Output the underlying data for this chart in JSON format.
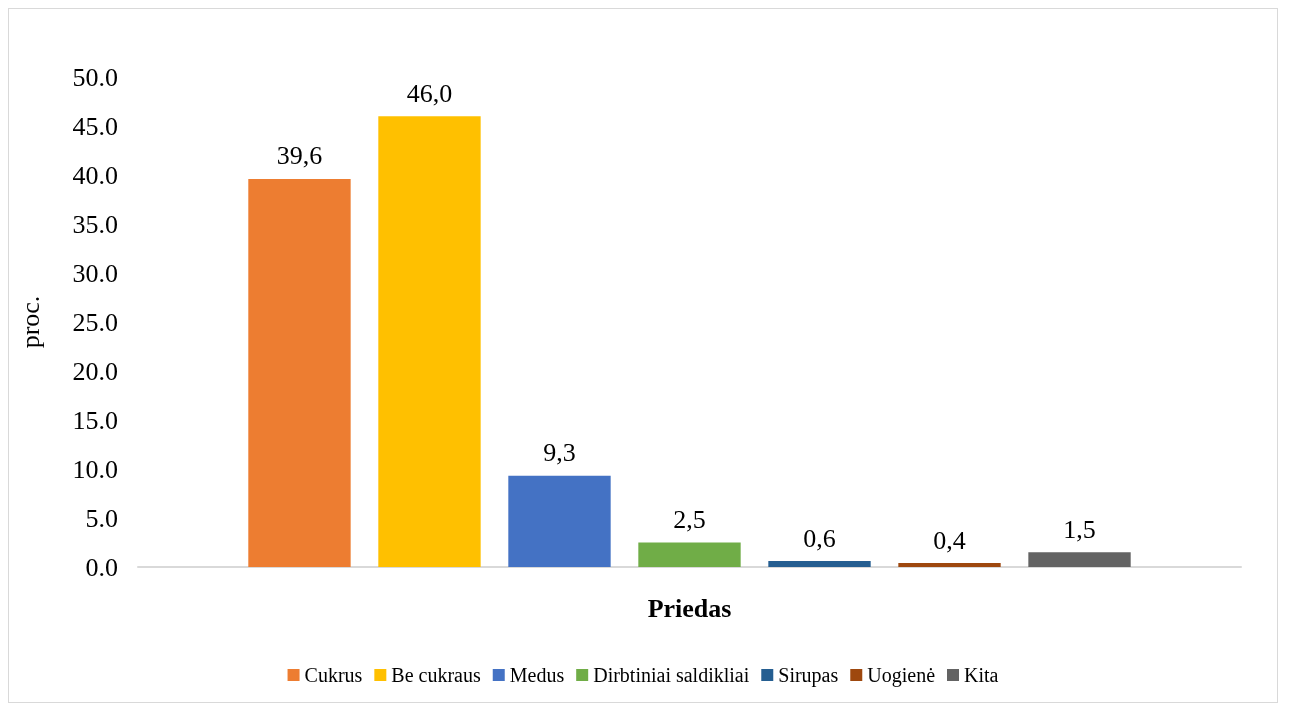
{
  "chart_data": {
    "type": "bar",
    "xlabel": "Priedas",
    "ylabel": "proc.",
    "categories": [
      null
    ],
    "series": [
      {
        "name": "Cukrus",
        "color": "#ed7d31",
        "values": [
          39.6
        ],
        "value_labels": [
          "39,6"
        ]
      },
      {
        "name": "Be cukraus",
        "color": "#ffc000",
        "values": [
          46.0
        ],
        "value_labels": [
          "46,0"
        ]
      },
      {
        "name": "Medus",
        "color": "#4472c4",
        "values": [
          9.3
        ],
        "value_labels": [
          "9,3"
        ]
      },
      {
        "name": "Dirbtiniai saldikliai",
        "color": "#70ad47",
        "values": [
          2.5
        ],
        "value_labels": [
          "2,5"
        ]
      },
      {
        "name": "Sirupas",
        "color": "#255e91",
        "values": [
          0.6
        ],
        "value_labels": [
          "0,6"
        ]
      },
      {
        "name": "Uogienė",
        "color": "#9e480e",
        "values": [
          0.4
        ],
        "value_labels": [
          "0,4"
        ]
      },
      {
        "name": "Kita",
        "color": "#636363",
        "values": [
          1.5
        ],
        "value_labels": [
          "1,5"
        ]
      }
    ],
    "ylim": [
      0,
      50
    ],
    "yticks": [
      {
        "value": 0,
        "label": "0.0"
      },
      {
        "value": 5,
        "label": "5.0"
      },
      {
        "value": 10,
        "label": "10.0"
      },
      {
        "value": 15,
        "label": "15.0"
      },
      {
        "value": 20,
        "label": "20.0"
      },
      {
        "value": 25,
        "label": "25.0"
      },
      {
        "value": 30,
        "label": "30.0"
      },
      {
        "value": 35,
        "label": "35.0"
      },
      {
        "value": 40,
        "label": "40.0"
      },
      {
        "value": 45,
        "label": "45.0"
      },
      {
        "value": 50,
        "label": "50.0"
      }
    ],
    "grid": false,
    "legend": "bottom"
  }
}
